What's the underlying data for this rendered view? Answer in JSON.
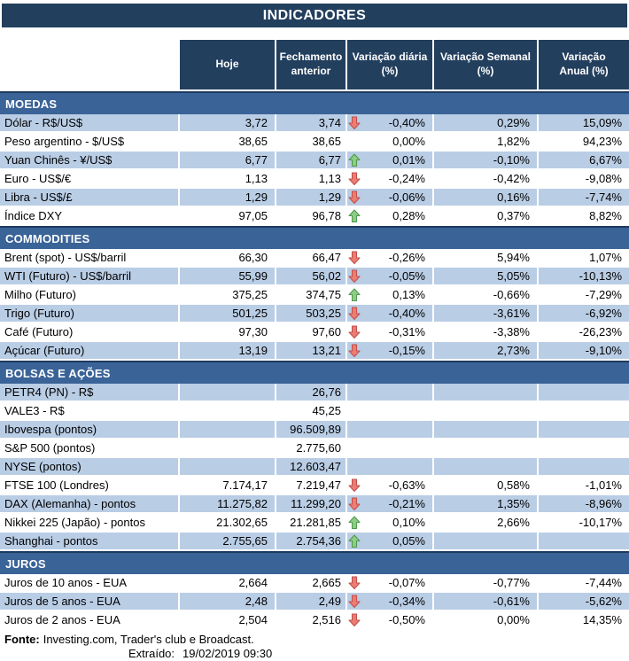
{
  "title": "INDICADORES",
  "columns": [
    "Hoje",
    "Fechamento\nanterior",
    "Variação diária\n(%)",
    "Variação Semanal\n(%)",
    "Variação\nAnual (%)"
  ],
  "colors": {
    "header_navy": "#233F5E",
    "section_blue": "#3A6397",
    "row_light_blue": "#B9CDE5",
    "arrow_red_fill": "#ED7D72",
    "arrow_red_stroke": "#C0504D",
    "arrow_green_fill": "#8FCC84",
    "arrow_green_stroke": "#4E9A4E"
  },
  "sections": [
    {
      "label": "MOEDAS",
      "rows": [
        {
          "label": "Dólar - R$/US$",
          "hoje": "3,72",
          "fechamento": "3,74",
          "arrow": "down",
          "var_diaria": "-0,40%",
          "var_semanal": "0,29%",
          "var_anual": "15,09%"
        },
        {
          "label": "Peso argentino - $/US$",
          "hoje": "38,65",
          "fechamento": "38,65",
          "arrow": "",
          "var_diaria": "0,00%",
          "var_semanal": "1,82%",
          "var_anual": "94,23%"
        },
        {
          "label": "Yuan Chinês - ¥/US$",
          "hoje": "6,77",
          "fechamento": "6,77",
          "arrow": "up",
          "var_diaria": "0,01%",
          "var_semanal": "-0,10%",
          "var_anual": "6,67%"
        },
        {
          "label": "Euro - US$/€",
          "hoje": "1,13",
          "fechamento": "1,13",
          "arrow": "down",
          "var_diaria": "-0,24%",
          "var_semanal": "-0,42%",
          "var_anual": "-9,08%"
        },
        {
          "label": "Libra - US$/£",
          "hoje": "1,29",
          "fechamento": "1,29",
          "arrow": "down",
          "var_diaria": "-0,06%",
          "var_semanal": "0,16%",
          "var_anual": "-7,74%"
        },
        {
          "label": "Índice DXY",
          "hoje": "97,05",
          "fechamento": "96,78",
          "arrow": "up",
          "var_diaria": "0,28%",
          "var_semanal": "0,37%",
          "var_anual": "8,82%"
        }
      ]
    },
    {
      "label": "COMMODITIES",
      "rows": [
        {
          "label": "Brent (spot) - US$/barril",
          "hoje": "66,30",
          "fechamento": "66,47",
          "arrow": "down",
          "var_diaria": "-0,26%",
          "var_semanal": "5,94%",
          "var_anual": "1,07%"
        },
        {
          "label": "WTI (Futuro) - US$/barril",
          "hoje": "55,99",
          "fechamento": "56,02",
          "arrow": "down",
          "var_diaria": "-0,05%",
          "var_semanal": "5,05%",
          "var_anual": "-10,13%"
        },
        {
          "label": "Milho (Futuro)",
          "hoje": "375,25",
          "fechamento": "374,75",
          "arrow": "up",
          "var_diaria": "0,13%",
          "var_semanal": "-0,66%",
          "var_anual": "-7,29%"
        },
        {
          "label": "Trigo (Futuro)",
          "hoje": "501,25",
          "fechamento": "503,25",
          "arrow": "down",
          "var_diaria": "-0,40%",
          "var_semanal": "-3,61%",
          "var_anual": "-6,92%"
        },
        {
          "label": "Café (Futuro)",
          "hoje": "97,30",
          "fechamento": "97,60",
          "arrow": "down",
          "var_diaria": "-0,31%",
          "var_semanal": "-3,38%",
          "var_anual": "-26,23%"
        },
        {
          "label": "Açúcar (Futuro)",
          "hoje": "13,19",
          "fechamento": "13,21",
          "arrow": "down",
          "var_diaria": "-0,15%",
          "var_semanal": "2,73%",
          "var_anual": "-9,10%"
        }
      ]
    },
    {
      "label": "BOLSAS E AÇÕES",
      "rows": [
        {
          "label": "PETR4 (PN) - R$",
          "hoje": "",
          "fechamento": "26,76",
          "arrow": "",
          "var_diaria": "",
          "var_semanal": "",
          "var_anual": ""
        },
        {
          "label": "VALE3 - R$",
          "hoje": "",
          "fechamento": "45,25",
          "arrow": "",
          "var_diaria": "",
          "var_semanal": "",
          "var_anual": ""
        },
        {
          "label": "Ibovespa (pontos)",
          "hoje": "",
          "fechamento": "96.509,89",
          "arrow": "",
          "var_diaria": "",
          "var_semanal": "",
          "var_anual": ""
        },
        {
          "label": "S&P 500 (pontos)",
          "hoje": "",
          "fechamento": "2.775,60",
          "arrow": "",
          "var_diaria": "",
          "var_semanal": "",
          "var_anual": ""
        },
        {
          "label": "NYSE (pontos)",
          "hoje": "",
          "fechamento": "12.603,47",
          "arrow": "",
          "var_diaria": "",
          "var_semanal": "",
          "var_anual": ""
        },
        {
          "label": "FTSE 100 (Londres)",
          "hoje": "7.174,17",
          "fechamento": "7.219,47",
          "arrow": "down",
          "var_diaria": "-0,63%",
          "var_semanal": "0,58%",
          "var_anual": "-1,01%"
        },
        {
          "label": "DAX (Alemanha) - pontos",
          "hoje": "11.275,82",
          "fechamento": "11.299,20",
          "arrow": "down",
          "var_diaria": "-0,21%",
          "var_semanal": "1,35%",
          "var_anual": "-8,96%"
        },
        {
          "label": "Nikkei 225 (Japão) - pontos",
          "hoje": "21.302,65",
          "fechamento": "21.281,85",
          "arrow": "up",
          "var_diaria": "0,10%",
          "var_semanal": "2,66%",
          "var_anual": "-10,17%"
        },
        {
          "label": "Shanghai - pontos",
          "hoje": "2.755,65",
          "fechamento": "2.754,36",
          "arrow": "up",
          "var_diaria": "0,05%",
          "var_semanal": "",
          "var_anual": ""
        }
      ]
    },
    {
      "label": "JUROS",
      "rows": [
        {
          "label": "Juros de 10 anos - EUA",
          "hoje": "2,664",
          "fechamento": "2,665",
          "arrow": "down",
          "var_diaria": "-0,07%",
          "var_semanal": "-0,77%",
          "var_anual": "-7,44%"
        },
        {
          "label": "Juros de 5 anos - EUA",
          "hoje": "2,48",
          "fechamento": "2,49",
          "arrow": "down",
          "var_diaria": "-0,34%",
          "var_semanal": "-0,61%",
          "var_anual": "-5,62%"
        },
        {
          "label": "Juros de 2 anos - EUA",
          "hoje": "2,504",
          "fechamento": "2,516",
          "arrow": "down",
          "var_diaria": "-0,50%",
          "var_semanal": "0,00%",
          "var_anual": "14,35%"
        }
      ]
    }
  ],
  "footer": {
    "fonte_label": "Fonte:",
    "fonte_text": "Investing.com, Trader's club e Broadcast.",
    "extraido_label": "Extraído:",
    "extraido_value": "19/02/2019 09:30"
  }
}
